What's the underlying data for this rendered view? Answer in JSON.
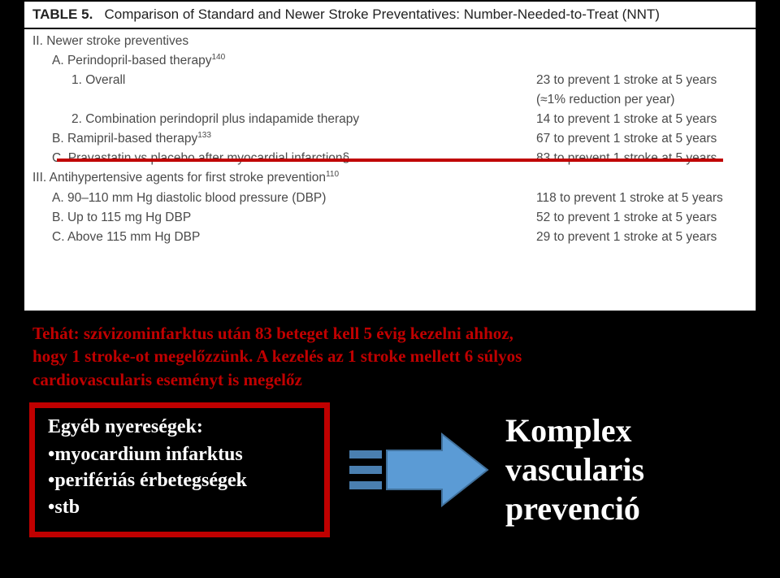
{
  "table": {
    "title_label": "TABLE 5.",
    "title_text": "Comparison of Standard and Newer Stroke Preventatives: Number-Needed-to-Treat (NNT)",
    "rows": [
      {
        "indent": 0,
        "left": "II. Newer stroke preventives",
        "right": ""
      },
      {
        "indent": 1,
        "left": "A. Perindopril-based therapy",
        "sup": "140",
        "right": ""
      },
      {
        "indent": 2,
        "left": "1. Overall",
        "right": "23 to prevent 1 stroke at 5 years",
        "right2": "(≈1% reduction per year)"
      },
      {
        "indent": 2,
        "left": "2. Combination perindopril plus indapamide therapy",
        "right": "14 to prevent 1 stroke at 5 years"
      },
      {
        "indent": 1,
        "left": "B. Ramipril-based therapy",
        "sup": "133",
        "right": "67 to prevent 1 stroke at 5 years"
      },
      {
        "indent": 1,
        "left": "C. Pravastatin vs placebo after myocardial infarction§",
        "right": "83 to prevent 1 stroke at 5 years"
      },
      {
        "indent": 0,
        "left": "III. Antihypertensive agents for first stroke prevention",
        "sup": "110",
        "right": ""
      },
      {
        "indent": 1,
        "left": "A. 90–110 mm Hg diastolic blood pressure (DBP)",
        "right": "118 to prevent 1 stroke at 5 years"
      },
      {
        "indent": 1,
        "left": "B. Up to 115 mg Hg DBP",
        "right": "52 to prevent 1 stroke at 5 years"
      },
      {
        "indent": 1,
        "left": "C. Above 115 mm Hg DBP",
        "right": "29 to prevent 1 stroke at 5 years"
      }
    ],
    "underline_color": "#c00000"
  },
  "summary": {
    "line1": "Tehát: szívizominfarktus után 83 beteget kell 5 évig kezelni ahhoz,",
    "line2": "hogy 1 stroke-ot megelőzzünk. A kezelés az 1 stroke mellett 6 súlyos",
    "line3": "cardiovascularis eseményt is megelőz",
    "color": "#c00000"
  },
  "box": {
    "heading": "Egyéb nyereségek:",
    "bullets": [
      "myocardium infarktus",
      "perifériás érbetegségek",
      "stb"
    ],
    "border_color": "#c00000",
    "text_color": "#ffffff"
  },
  "arrow": {
    "fill": "#5b9bd5",
    "stroke": "#41719c",
    "tail_lines_color": "#4a7fb0"
  },
  "result": {
    "line1": "Komplex",
    "line2": "vascularis",
    "line3": "prevenció",
    "color": "#ffffff"
  }
}
